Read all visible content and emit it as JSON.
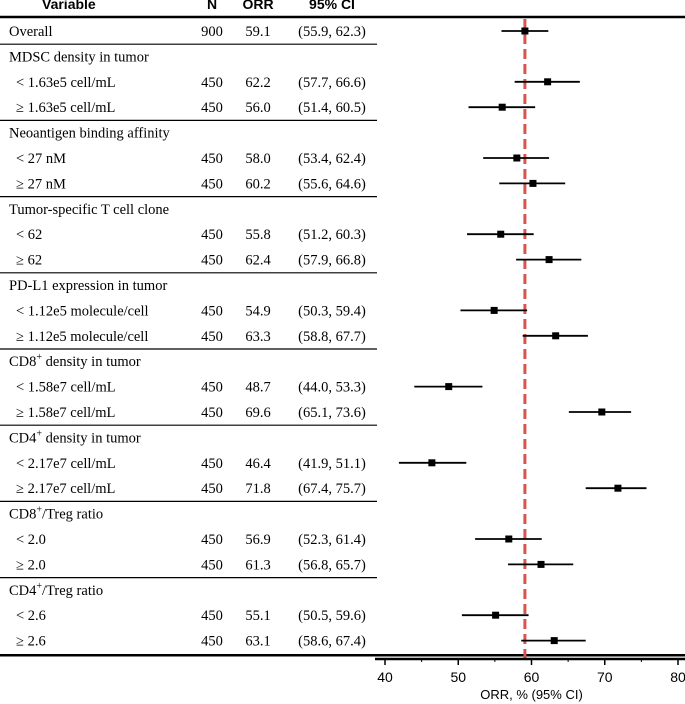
{
  "header": {
    "variable": "Variable",
    "n": "N",
    "orr": "ORR",
    "ci": "95% CI"
  },
  "rows": [
    {
      "label": "Overall",
      "n": "900",
      "orr_text": "59.1",
      "ci_text": "(55.9, 62.3)",
      "est": 59.1,
      "lo": 55.9,
      "hi": 62.3,
      "indent": false,
      "group": false
    },
    {
      "label": "MDSC density in tumor",
      "group": true
    },
    {
      "label": "< 1.63e5 cell/mL",
      "n": "450",
      "orr_text": "62.2",
      "ci_text": "(57.7, 66.6)",
      "est": 62.2,
      "lo": 57.7,
      "hi": 66.6,
      "indent": true
    },
    {
      "label": "≥ 1.63e5 cell/mL",
      "n": "450",
      "orr_text": "56.0",
      "ci_text": "(51.4, 60.5)",
      "est": 56.0,
      "lo": 51.4,
      "hi": 60.5,
      "indent": true
    },
    {
      "label": "Neoantigen binding affinity",
      "group": true
    },
    {
      "label": "< 27 nM",
      "n": "450",
      "orr_text": "58.0",
      "ci_text": "(53.4, 62.4)",
      "est": 58.0,
      "lo": 53.4,
      "hi": 62.4,
      "indent": true
    },
    {
      "label": "≥ 27 nM",
      "n": "450",
      "orr_text": "60.2",
      "ci_text": "(55.6, 64.6)",
      "est": 60.2,
      "lo": 55.6,
      "hi": 64.6,
      "indent": true
    },
    {
      "label": "Tumor-specific T cell clone",
      "group": true
    },
    {
      "label": "< 62",
      "n": "450",
      "orr_text": "55.8",
      "ci_text": "(51.2, 60.3)",
      "est": 55.8,
      "lo": 51.2,
      "hi": 60.3,
      "indent": true
    },
    {
      "label": "≥ 62",
      "n": "450",
      "orr_text": "62.4",
      "ci_text": "(57.9, 66.8)",
      "est": 62.4,
      "lo": 57.9,
      "hi": 66.8,
      "indent": true
    },
    {
      "label": "PD-L1 expression in tumor",
      "group": true
    },
    {
      "label": "< 1.12e5 molecule/cell",
      "n": "450",
      "orr_text": "54.9",
      "ci_text": "(50.3, 59.4)",
      "est": 54.9,
      "lo": 50.3,
      "hi": 59.4,
      "indent": true
    },
    {
      "label": "≥ 1.12e5 molecule/cell",
      "n": "450",
      "orr_text": "63.3",
      "ci_text": "(58.8, 67.7)",
      "est": 63.3,
      "lo": 58.8,
      "hi": 67.7,
      "indent": true
    },
    {
      "label": "CD8",
      "sup": "+",
      "suffix": " density in tumor",
      "group": true
    },
    {
      "label": "< 1.58e7 cell/mL",
      "n": "450",
      "orr_text": "48.7",
      "ci_text": "(44.0, 53.3)",
      "est": 48.7,
      "lo": 44.0,
      "hi": 53.3,
      "indent": true
    },
    {
      "label": "≥ 1.58e7 cell/mL",
      "n": "450",
      "orr_text": "69.6",
      "ci_text": "(65.1, 73.6)",
      "est": 69.6,
      "lo": 65.1,
      "hi": 73.6,
      "indent": true
    },
    {
      "label": "CD4",
      "sup": "+",
      "suffix": " density in tumor",
      "group": true
    },
    {
      "label": "< 2.17e7 cell/mL",
      "n": "450",
      "orr_text": "46.4",
      "ci_text": "(41.9, 51.1)",
      "est": 46.4,
      "lo": 41.9,
      "hi": 51.1,
      "indent": true
    },
    {
      "label": "≥ 2.17e7 cell/mL",
      "n": "450",
      "orr_text": "71.8",
      "ci_text": "(67.4, 75.7)",
      "est": 71.8,
      "lo": 67.4,
      "hi": 75.7,
      "indent": true
    },
    {
      "label": "CD8",
      "sup": "+",
      "suffix": "/Treg ratio",
      "group": true
    },
    {
      "label": "< 2.0",
      "n": "450",
      "orr_text": "56.9",
      "ci_text": "(52.3, 61.4)",
      "est": 56.9,
      "lo": 52.3,
      "hi": 61.4,
      "indent": true
    },
    {
      "label": "≥ 2.0",
      "n": "450",
      "orr_text": "61.3",
      "ci_text": "(56.8, 65.7)",
      "est": 61.3,
      "lo": 56.8,
      "hi": 65.7,
      "indent": true
    },
    {
      "label": "CD4",
      "sup": "+",
      "suffix": "/Treg ratio",
      "group": true
    },
    {
      "label": "< 2.6",
      "n": "450",
      "orr_text": "55.1",
      "ci_text": "(50.5, 59.6)",
      "est": 55.1,
      "lo": 50.5,
      "hi": 59.6,
      "indent": true
    },
    {
      "label": "≥ 2.6",
      "n": "450",
      "orr_text": "63.1",
      "ci_text": "(58.6, 67.4)",
      "est": 63.1,
      "lo": 58.6,
      "hi": 67.4,
      "indent": true
    }
  ],
  "chart_data": {
    "type": "forest",
    "xlabel": "ORR, % (95% CI)",
    "xlim": [
      38,
      81
    ],
    "xticks": [
      40,
      50,
      60,
      70,
      80
    ],
    "reference_line": 59.1,
    "reference_color": "#d9534f",
    "marker_color": "#000000",
    "separators_after_rows": [
      0,
      3,
      6,
      9,
      12,
      15,
      18,
      21
    ]
  }
}
